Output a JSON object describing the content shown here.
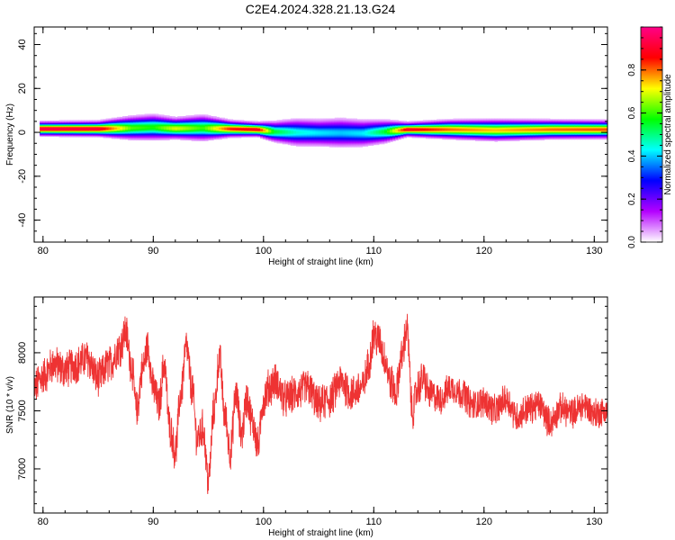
{
  "title": "C2E4.2024.328.21.13.G24",
  "chart_data": [
    {
      "type": "heatmap",
      "xlabel": "Height of straight line (km)",
      "ylabel": "Frequency (Hz)",
      "xlim": [
        79.2,
        131.2
      ],
      "ylim": [
        -50,
        48
      ],
      "x_ticks": [
        80,
        90,
        100,
        110,
        120,
        130
      ],
      "y_ticks": [
        -40,
        -20,
        0,
        20,
        40
      ],
      "colorbar": {
        "label": "Normalized spectral amplitude",
        "range": [
          0,
          1
        ],
        "ticks": [
          0.0,
          0.2,
          0.4,
          0.6,
          0.8
        ],
        "colors": [
          "#ffffff",
          "#b400ff",
          "#0000ff",
          "#00ffff",
          "#00ff00",
          "#ffff00",
          "#ff0000",
          "#ff0088"
        ]
      },
      "bands": [
        {
          "x": 79.7,
          "center": 1.8,
          "width": 3.0,
          "peak": 0.95
        },
        {
          "x": 85,
          "center": 1.8,
          "width": 3.2,
          "peak": 0.92
        },
        {
          "x": 88,
          "center": 2.2,
          "width": 5.0,
          "peak": 0.62
        },
        {
          "x": 90,
          "center": 2.5,
          "width": 5.5,
          "peak": 0.58
        },
        {
          "x": 92,
          "center": 2.0,
          "width": 4.5,
          "peak": 0.7
        },
        {
          "x": 94.5,
          "center": 2.2,
          "width": 5.5,
          "peak": 0.6
        },
        {
          "x": 97,
          "center": 1.8,
          "width": 3.5,
          "peak": 0.85
        },
        {
          "x": 99.5,
          "center": 1.5,
          "width": 3.0,
          "peak": 0.9
        },
        {
          "x": 101,
          "center": 0.5,
          "width": 4.5,
          "peak": 0.55
        },
        {
          "x": 103,
          "center": 0.2,
          "width": 6.0,
          "peak": 0.45
        },
        {
          "x": 105,
          "center": 0.0,
          "width": 6.0,
          "peak": 0.42
        },
        {
          "x": 107,
          "center": 0.0,
          "width": 6.5,
          "peak": 0.4
        },
        {
          "x": 109,
          "center": -0.2,
          "width": 6.0,
          "peak": 0.42
        },
        {
          "x": 111,
          "center": 0.5,
          "width": 5.0,
          "peak": 0.55
        },
        {
          "x": 113,
          "center": 1.5,
          "width": 3.0,
          "peak": 0.9
        },
        {
          "x": 117,
          "center": 1.5,
          "width": 4.0,
          "peak": 0.8
        },
        {
          "x": 121,
          "center": 1.2,
          "width": 4.5,
          "peak": 0.75
        },
        {
          "x": 126,
          "center": 1.5,
          "width": 4.0,
          "peak": 0.8
        },
        {
          "x": 131,
          "center": 1.5,
          "width": 3.8,
          "peak": 0.82
        }
      ]
    },
    {
      "type": "line",
      "xlabel": "Height of straight line (km)",
      "ylabel": "SNR (10 * v/v)",
      "xlim": [
        79.2,
        131.2
      ],
      "ylim": [
        6620,
        8480
      ],
      "x_ticks": [
        80,
        90,
        100,
        110,
        120,
        130
      ],
      "y_ticks": [
        7000,
        7500,
        8000
      ],
      "line_color": "#ee3333",
      "x": [
        79.2,
        80.0,
        81.0,
        82.0,
        83.0,
        84.0,
        85.0,
        86.0,
        87.0,
        87.5,
        88.0,
        88.5,
        89.0,
        89.5,
        90.0,
        90.5,
        91.0,
        91.5,
        92.0,
        92.5,
        93.0,
        93.5,
        94.0,
        94.5,
        95.0,
        95.5,
        96.0,
        96.5,
        97.0,
        97.5,
        98.0,
        98.5,
        99.0,
        99.5,
        100.0,
        100.5,
        101.0,
        102.0,
        103.0,
        104.0,
        105.0,
        106.0,
        107.0,
        108.0,
        109.0,
        109.5,
        110.0,
        110.5,
        111.0,
        111.5,
        112.0,
        112.5,
        113.0,
        113.5,
        114.0,
        114.5,
        115.0,
        116.0,
        117.0,
        118.0,
        119.0,
        120.0,
        121.0,
        122.0,
        123.0,
        124.0,
        125.0,
        126.0,
        127.0,
        128.0,
        129.0,
        130.0,
        131.2
      ],
      "y": [
        7700,
        7800,
        7900,
        7850,
        7900,
        7950,
        7780,
        7900,
        8050,
        8180,
        7900,
        7500,
        7850,
        8050,
        7700,
        7550,
        7900,
        7350,
        7150,
        7650,
        8050,
        7700,
        7250,
        7350,
        6900,
        7500,
        7950,
        7450,
        7150,
        7650,
        7300,
        7600,
        7400,
        7200,
        7600,
        7700,
        7750,
        7600,
        7650,
        7700,
        7550,
        7600,
        7750,
        7650,
        7700,
        7880,
        8150,
        8100,
        7950,
        7750,
        7650,
        7950,
        8200,
        7500,
        7700,
        7780,
        7650,
        7600,
        7700,
        7650,
        7550,
        7580,
        7500,
        7600,
        7450,
        7520,
        7550,
        7400,
        7520,
        7480,
        7550,
        7480,
        7500
      ]
    }
  ]
}
